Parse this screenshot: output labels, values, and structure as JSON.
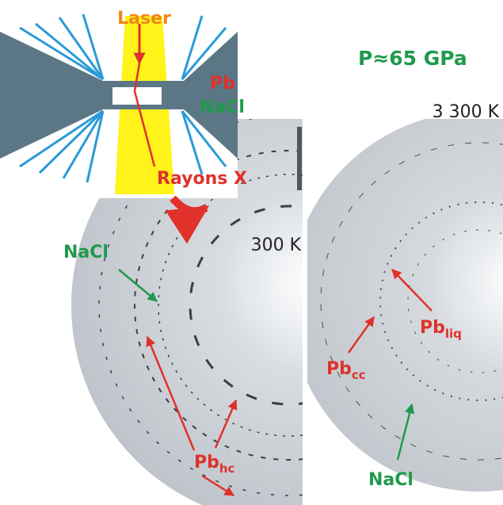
{
  "schematic": {
    "laser": "Laser",
    "sample": "Pb",
    "medium": "NaCl",
    "xrays": "Rayons X"
  },
  "pressure": "P≈65 GPa",
  "left_pattern": {
    "temperature": "300 K",
    "labels": [
      {
        "text": "NaCl"
      },
      {
        "text": "Pb",
        "subscript": "hc"
      }
    ]
  },
  "right_pattern": {
    "temperature": "3 300 K",
    "labels": [
      {
        "text": "Pb",
        "subscript": "cc"
      },
      {
        "text": "Pb",
        "subscript": "liq"
      },
      {
        "text": "NaCl"
      }
    ]
  }
}
